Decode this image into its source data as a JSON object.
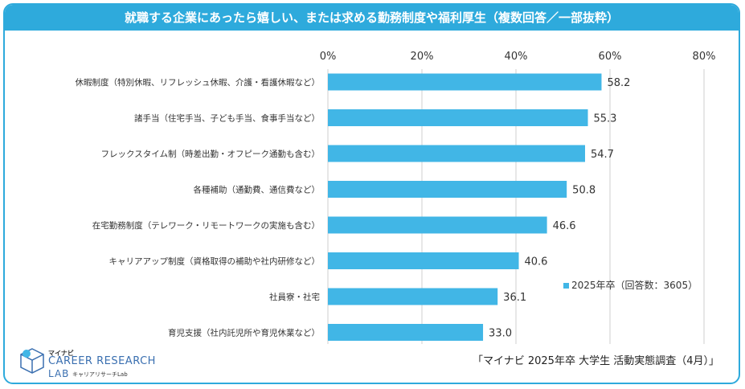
{
  "title": "就職する企業にあったら嬉しい、または求める勤務制度や福利厚生（複数回答／一部抜粋）",
  "source": "「マイナビ 2025年卒 大学生 活動実態調査（4月）」",
  "logo": {
    "small": "マイナビ",
    "main": "CAREER RESEARCH",
    "lab": "LAB",
    "lab_jp": "キャリアリサーチLab"
  },
  "colors": {
    "accent": "#2eaadc",
    "bar": "#41b6e6",
    "grid": "#cfcfcf"
  },
  "chart_data": {
    "type": "bar",
    "orientation": "horizontal",
    "title": "就職する企業にあったら嬉しい、または求める勤務制度や福利厚生（複数回答／一部抜粋）",
    "categories": [
      "休暇制度（特別休暇、リフレッシュ休暇、介護・看護休暇など）",
      "諸手当（住宅手当、子ども手当、食事手当など）",
      "フレックスタイム制（時差出勤・オフピーク通勤も含む）",
      "各種補助（通勤費、通信費など）",
      "在宅勤務制度（テレワーク・リモートワークの実施も含む）",
      "キャリアアップ制度（資格取得の補助や社内研修など）",
      "社員寮・社宅",
      "育児支援（社内託児所や育児休業など）"
    ],
    "series": [
      {
        "name": "2025年卒（回答数：3605）",
        "values": [
          58.2,
          55.3,
          54.7,
          50.8,
          46.6,
          40.6,
          36.1,
          33.0
        ]
      }
    ],
    "value_labels": [
      "58.2",
      "55.3",
      "54.7",
      "50.8",
      "46.6",
      "40.6",
      "36.1",
      "33.0"
    ],
    "xlim": [
      0,
      80
    ],
    "xticks": [
      0,
      20,
      40,
      60,
      80
    ],
    "xtick_labels": [
      "0%",
      "20%",
      "40%",
      "60%",
      "80%"
    ],
    "legend_label": "2025年卒（回答数：3605）",
    "legend_position": "right"
  }
}
